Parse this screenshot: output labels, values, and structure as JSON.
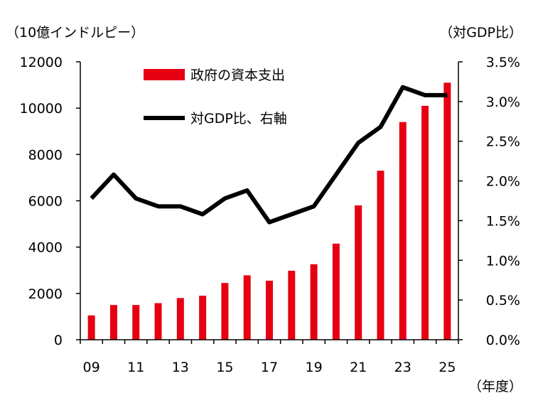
{
  "chart_data": {
    "type": "bar+line",
    "left_unit": "（10億インドルピー）",
    "right_unit": "（対GDP比）",
    "x_unit": "（年度）",
    "categories": [
      "09",
      "10",
      "11",
      "12",
      "13",
      "14",
      "15",
      "16",
      "17",
      "18",
      "19",
      "20",
      "21",
      "22",
      "23",
      "24",
      "25"
    ],
    "x_tick_labels": [
      "09",
      "11",
      "13",
      "15",
      "17",
      "19",
      "21",
      "23",
      "25"
    ],
    "left_axis": {
      "ticks": [
        "0",
        "2000",
        "4000",
        "6000",
        "8000",
        "10000",
        "12000"
      ],
      "ylim": [
        0,
        12000
      ]
    },
    "right_axis": {
      "ticks": [
        "0.0%",
        "0.5%",
        "1.0%",
        "1.5%",
        "2.0%",
        "2.5%",
        "3.0%",
        "3.5%"
      ],
      "ylim": [
        0,
        3.5
      ]
    },
    "series": [
      {
        "name": "政府の資本支出",
        "kind": "bar",
        "axis": "left",
        "color": "#e60012",
        "values": [
          1050,
          1500,
          1500,
          1580,
          1800,
          1900,
          2450,
          2780,
          2550,
          2980,
          3260,
          4150,
          5800,
          7300,
          9400,
          10100,
          11100
        ]
      },
      {
        "name": "対GDP比、右軸",
        "kind": "line",
        "axis": "right",
        "color": "#000000",
        "values": [
          1.78,
          2.08,
          1.78,
          1.68,
          1.68,
          1.58,
          1.78,
          1.88,
          1.48,
          1.58,
          1.68,
          2.08,
          2.48,
          2.68,
          3.18,
          3.08,
          3.08
        ]
      }
    ],
    "legend": {
      "placement": "top-center"
    },
    "grid": false
  }
}
